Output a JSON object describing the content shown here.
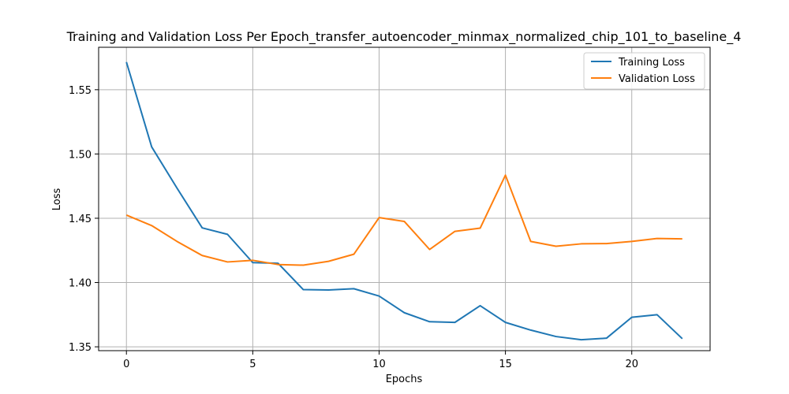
{
  "chart_data": {
    "type": "line",
    "title": "Training and Validation Loss Per Epoch_transfer_autoencoder_minmax_normalized_chip_101_to_baseline_4",
    "xlabel": "Epochs",
    "ylabel": "Loss",
    "xlim": [
      -1.1,
      23.1
    ],
    "ylim": [
      1.347,
      1.583
    ],
    "xticks": [
      0,
      5,
      10,
      15,
      20
    ],
    "yticks": [
      1.35,
      1.4,
      1.45,
      1.5,
      1.55
    ],
    "ytick_labels": [
      "1.35",
      "1.40",
      "1.45",
      "1.50",
      "1.55"
    ],
    "grid": true,
    "legend_position": "top-right",
    "x": [
      0,
      1,
      2,
      3,
      4,
      5,
      6,
      7,
      8,
      9,
      10,
      11,
      12,
      13,
      14,
      15,
      16,
      17,
      18,
      19,
      20,
      21,
      22
    ],
    "series": [
      {
        "name": "Training Loss",
        "color": "#1f77b4",
        "values": [
          1.5715,
          1.5055,
          1.4735,
          1.4425,
          1.4375,
          1.4155,
          1.415,
          1.3945,
          1.3942,
          1.3952,
          1.3895,
          1.3765,
          1.3695,
          1.369,
          1.382,
          1.369,
          1.363,
          1.358,
          1.3555,
          1.3567,
          1.373,
          1.375,
          1.3563
        ]
      },
      {
        "name": "Validation Loss",
        "color": "#ff7f0e",
        "values": [
          1.4525,
          1.4443,
          1.432,
          1.421,
          1.416,
          1.4173,
          1.414,
          1.4135,
          1.4165,
          1.422,
          1.4505,
          1.4475,
          1.4257,
          1.4398,
          1.4423,
          1.4835,
          1.432,
          1.4282,
          1.4301,
          1.4303,
          1.432,
          1.4343,
          1.434
        ]
      }
    ]
  }
}
